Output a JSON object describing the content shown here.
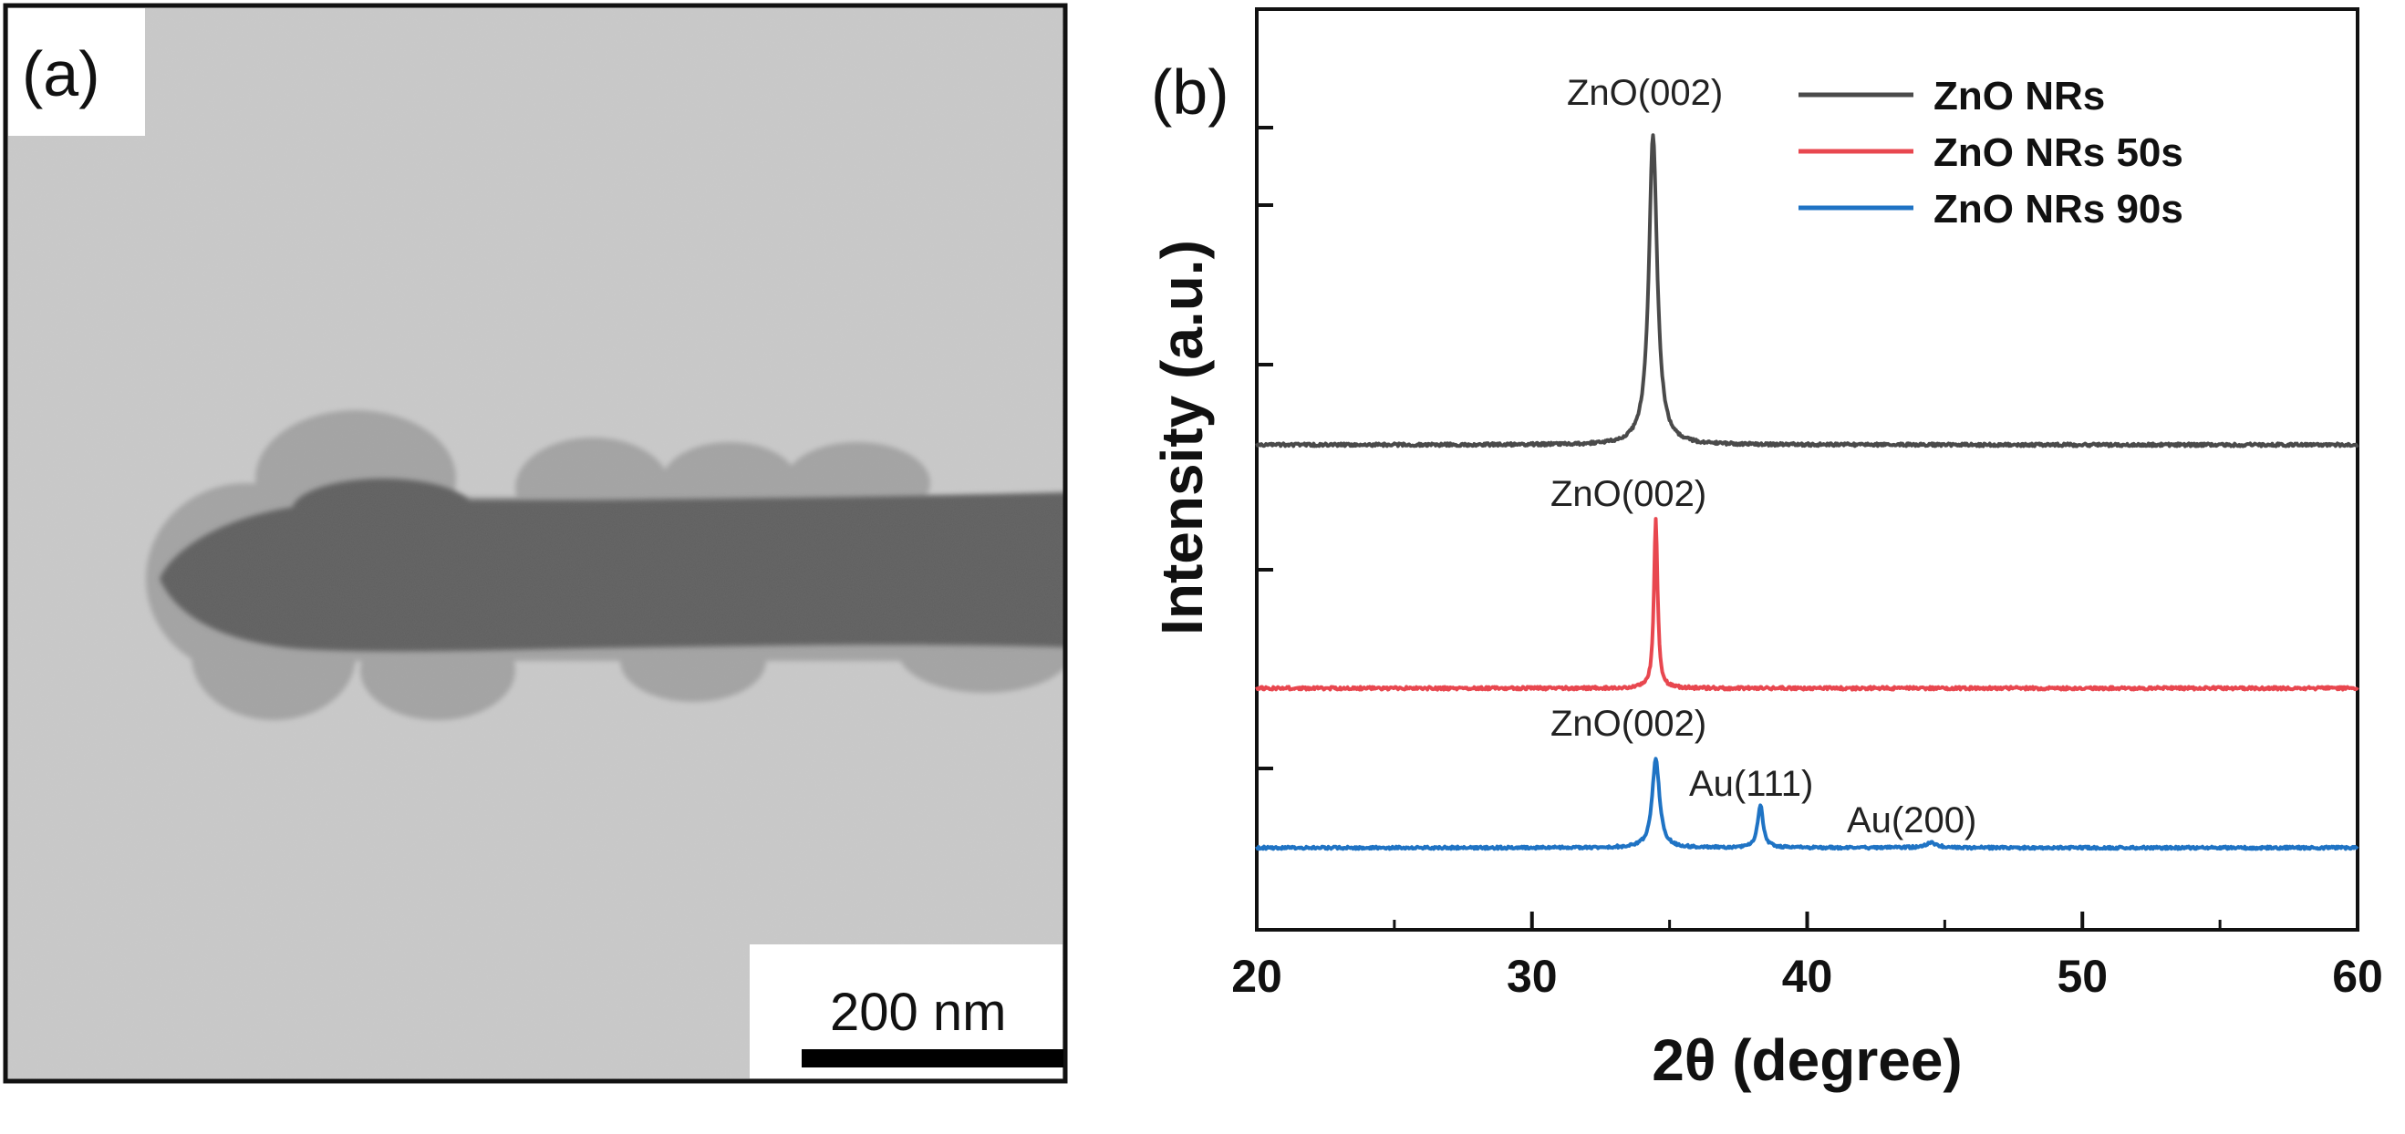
{
  "panel_a": {
    "label": "(a)",
    "scale_bar_label": "200 nm"
  },
  "panel_b": {
    "label": "(b)"
  },
  "chart_data": {
    "type": "line",
    "xlabel": "2θ (degree)",
    "ylabel": "Intensity (a.u.)",
    "xlim": [
      20,
      60
    ],
    "xticks": [
      "20",
      "30",
      "40",
      "50",
      "60"
    ],
    "ytick_labels": "none",
    "grid": false,
    "legend_position": "top-right",
    "series": [
      {
        "name": "ZnO NRs",
        "color": "#4a4a4a",
        "baseline": 0.0,
        "peaks": [
          {
            "x": 34.4,
            "height": 1.0,
            "width": 0.18
          }
        ]
      },
      {
        "name": "ZnO NRs 50s",
        "color": "#e8474f",
        "baseline": 0.0,
        "peaks": [
          {
            "x": 34.5,
            "height": 1.0,
            "width": 0.08
          }
        ]
      },
      {
        "name": "ZnO NRs 90s",
        "color": "#1f73c4",
        "baseline": 0.0,
        "peaks": [
          {
            "x": 34.5,
            "height": 1.0,
            "width": 0.16
          },
          {
            "x": 38.3,
            "height": 0.48,
            "width": 0.12
          },
          {
            "x": 44.5,
            "height": 0.06,
            "width": 0.25
          }
        ]
      }
    ],
    "annotations": [
      {
        "text": "ZnO(002)",
        "series": "ZnO NRs"
      },
      {
        "text": "ZnO(002)",
        "series": "ZnO NRs 50s"
      },
      {
        "text": "ZnO(002)",
        "series": "ZnO NRs 90s"
      },
      {
        "text": "Au(111)",
        "series": "ZnO NRs 90s"
      },
      {
        "text": "Au(200)",
        "series": "ZnO NRs 90s"
      }
    ]
  }
}
